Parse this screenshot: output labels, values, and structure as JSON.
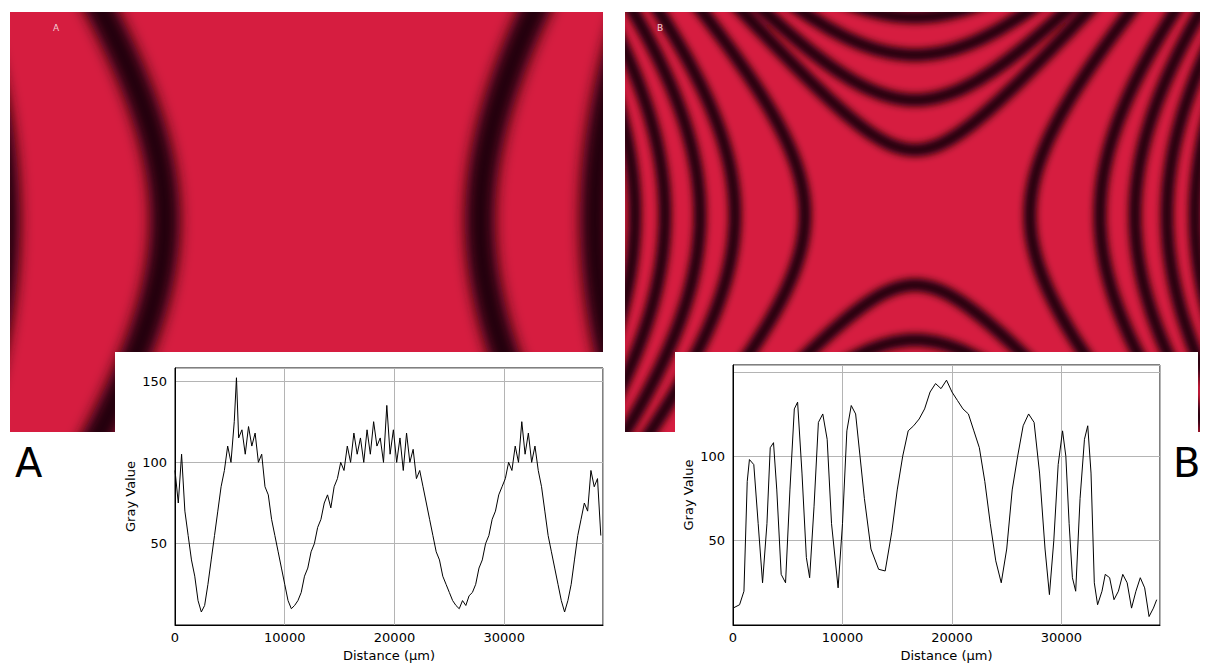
{
  "chart_data": [
    {
      "type": "line",
      "title": "A",
      "annotations": [
        "A"
      ],
      "x_label": "Distance (µm)",
      "y_label": "Gray Value",
      "color": "#000000",
      "grid": true,
      "xlim": [
        0,
        39000
      ],
      "xticks": [
        0,
        10000,
        20000,
        30000
      ],
      "ylim": [
        0,
        158
      ],
      "yticks": [
        50,
        100,
        150
      ],
      "x": [
        0,
        300,
        600,
        900,
        1200,
        1500,
        1800,
        2100,
        2400,
        2700,
        3000,
        3300,
        3600,
        3900,
        4200,
        4500,
        4800,
        5100,
        5400,
        5600,
        5800,
        6100,
        6400,
        6700,
        7000,
        7300,
        7600,
        7900,
        8200,
        8500,
        8800,
        9100,
        9400,
        9700,
        10000,
        10300,
        10600,
        10900,
        11200,
        11500,
        11800,
        12100,
        12400,
        12700,
        13000,
        13300,
        13600,
        13900,
        14200,
        14500,
        14800,
        15100,
        15400,
        15700,
        16000,
        16300,
        16600,
        16900,
        17200,
        17500,
        17800,
        18100,
        18400,
        18700,
        19000,
        19300,
        19600,
        19900,
        20200,
        20500,
        20800,
        21100,
        21400,
        21700,
        22000,
        22300,
        22600,
        22900,
        23200,
        23500,
        23800,
        24100,
        24400,
        24700,
        25000,
        25300,
        25600,
        25900,
        26200,
        26500,
        26800,
        27100,
        27400,
        27700,
        28000,
        28300,
        28600,
        28900,
        29200,
        29500,
        29800,
        30100,
        30400,
        30700,
        31000,
        31300,
        31600,
        31900,
        32200,
        32500,
        32800,
        33100,
        33400,
        33700,
        34000,
        34300,
        34600,
        34900,
        35200,
        35500,
        35800,
        36100,
        36400,
        36700,
        37000,
        37300,
        37600,
        37900,
        38200,
        38500,
        38800
      ],
      "values": [
        95,
        75,
        105,
        70,
        55,
        40,
        30,
        15,
        8,
        12,
        25,
        40,
        55,
        70,
        85,
        95,
        110,
        100,
        125,
        152,
        115,
        120,
        105,
        122,
        110,
        118,
        100,
        105,
        85,
        80,
        65,
        55,
        45,
        35,
        25,
        15,
        10,
        12,
        15,
        20,
        30,
        35,
        45,
        50,
        60,
        65,
        75,
        80,
        72,
        85,
        90,
        100,
        95,
        110,
        100,
        118,
        105,
        115,
        100,
        120,
        105,
        125,
        110,
        115,
        100,
        135,
        105,
        120,
        100,
        115,
        95,
        118,
        100,
        108,
        90,
        95,
        85,
        75,
        65,
        55,
        45,
        40,
        30,
        25,
        20,
        15,
        12,
        10,
        15,
        12,
        18,
        20,
        25,
        35,
        40,
        50,
        55,
        65,
        70,
        80,
        85,
        90,
        100,
        95,
        110,
        100,
        125,
        105,
        118,
        100,
        110,
        95,
        85,
        70,
        55,
        45,
        35,
        25,
        15,
        8,
        15,
        25,
        40,
        55,
        65,
        75,
        70,
        95,
        85,
        90,
        55
      ]
    },
    {
      "type": "line",
      "title": "B",
      "annotations": [
        "B"
      ],
      "x_label": "Distance (µm)",
      "y_label": "Gray Value",
      "color": "#000000",
      "grid": true,
      "xlim": [
        0,
        39000
      ],
      "xticks": [
        0,
        10000,
        20000,
        30000
      ],
      "ylim": [
        0,
        154
      ],
      "yticks": [
        50,
        100
      ],
      "x": [
        0,
        600,
        1000,
        1300,
        1500,
        1900,
        2300,
        2700,
        3100,
        3400,
        3700,
        4000,
        4400,
        4800,
        5200,
        5600,
        5900,
        6300,
        6700,
        7000,
        7400,
        7800,
        8200,
        8600,
        9000,
        9600,
        10000,
        10400,
        10800,
        11200,
        11600,
        12000,
        12600,
        13300,
        13900,
        14500,
        15000,
        15500,
        16000,
        16500,
        17000,
        17500,
        18000,
        18500,
        19000,
        19500,
        20000,
        20500,
        21000,
        21500,
        22000,
        22500,
        23000,
        23500,
        24000,
        24500,
        25000,
        25500,
        26000,
        26500,
        27000,
        27500,
        28000,
        28500,
        28900,
        29300,
        29700,
        30100,
        30400,
        30700,
        31000,
        31300,
        31700,
        32100,
        32400,
        32700,
        33000,
        33300,
        33700,
        34000,
        34400,
        34800,
        35200,
        35600,
        36000,
        36400,
        36800,
        37200,
        37600,
        38000,
        38400,
        38700
      ],
      "values": [
        10,
        12,
        20,
        85,
        98,
        95,
        60,
        25,
        60,
        105,
        108,
        80,
        30,
        25,
        80,
        128,
        132,
        90,
        40,
        28,
        70,
        120,
        125,
        110,
        60,
        22,
        60,
        115,
        130,
        125,
        100,
        75,
        45,
        33,
        32,
        55,
        80,
        100,
        115,
        118,
        122,
        128,
        138,
        143,
        140,
        145,
        138,
        133,
        128,
        125,
        115,
        105,
        85,
        60,
        38,
        25,
        45,
        80,
        100,
        118,
        125,
        120,
        90,
        45,
        18,
        50,
        95,
        115,
        100,
        60,
        28,
        20,
        75,
        110,
        118,
        90,
        25,
        12,
        20,
        30,
        28,
        15,
        20,
        30,
        25,
        10,
        20,
        28,
        22,
        5,
        10,
        15
      ]
    }
  ]
}
